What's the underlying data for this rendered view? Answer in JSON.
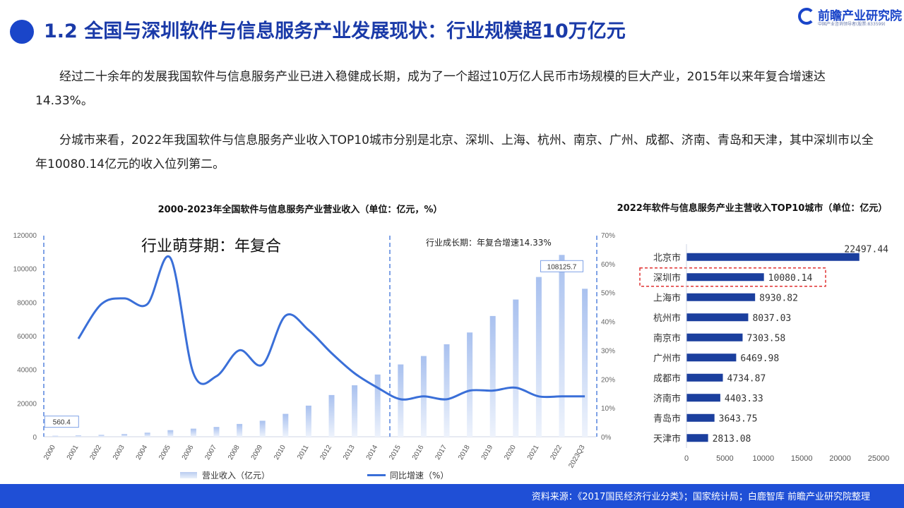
{
  "header": {
    "title": "1.2 全国与深圳软件与信息服务产业发展现状：行业规模超10万亿元",
    "logo_name": "前瞻产业研究院",
    "logo_sub": "中国产业咨询领导者(股票:833599)"
  },
  "paragraphs": [
    "经过二十余年的发展我国软件与信息服务产业已进入稳健成长期，成为了一个超过10万亿人民币市场规模的巨大产业，2015年以来年复合增速达14.33%。",
    "分城市来看，2022年我国软件与信息服务产业收入TOP10城市分别是北京、深圳、上海、杭州、南京、广州、成都、济南、青岛和天津，其中深圳市以全年10080.14亿元的收入位列第二。"
  ],
  "footer": {
    "source": "资料来源：《2017国民经济行业分类》；国家统计局；白鹿智库   前瞻产业研究院整理"
  },
  "colors": {
    "brand_blue": "#1a45c9",
    "footer_blue": "#1f4fd6",
    "line_blue": "#3a6fd8",
    "bar_navy": "#1b3f9e",
    "highlight_red": "#e03030"
  },
  "chart_data": [
    {
      "type": "bar",
      "title": "2000-2023年全国软件与信息服务产业营业收入（单位：亿元，%）",
      "categories": [
        "2000",
        "2001",
        "2002",
        "2003",
        "2004",
        "2005",
        "2006",
        "2007",
        "2008",
        "2009",
        "2010",
        "2011",
        "2012",
        "2013",
        "2014",
        "2015",
        "2016",
        "2017",
        "2018",
        "2019",
        "2020",
        "2021",
        "2022",
        "2023Q3"
      ],
      "series": [
        {
          "name": "营业收入（亿元）",
          "type": "bar",
          "axis": "left",
          "values": [
            560.4,
            800,
            1100,
            1600,
            2400,
            3900,
            4800,
            5800,
            7600,
            9500,
            13600,
            18500,
            24800,
            30600,
            37000,
            43000,
            48000,
            55000,
            62000,
            71800,
            81600,
            95000,
            108125.7,
            88000
          ]
        },
        {
          "name": "同比增速（%）",
          "type": "line",
          "axis": "right",
          "values": [
            null,
            34,
            46,
            48,
            46,
            62,
            22,
            21,
            30,
            25,
            42,
            37,
            29,
            22,
            17,
            13,
            14,
            13,
            16,
            16,
            17,
            14,
            14,
            14
          ]
        }
      ],
      "y_left": {
        "min": 0,
        "max": 120000,
        "ticks": [
          "0",
          "20000",
          "40000",
          "60000",
          "80000",
          "100000",
          "120000"
        ]
      },
      "y_right": {
        "min": 0,
        "max": 70,
        "ticks": [
          "0%",
          "10%",
          "20%",
          "30%",
          "40%",
          "50%",
          "60%",
          "70%"
        ]
      },
      "data_labels": {
        "first": "560.4",
        "peak": "108125.7"
      },
      "annotations": [
        "行业萌芽期：年复合",
        "行业成长期：年复合增速14.33%"
      ],
      "legend_position": "bottom"
    },
    {
      "type": "bar",
      "orientation": "horizontal",
      "title": "2022年软件与信息服务产业主营收入TOP10城市（单位：亿元）",
      "categories": [
        "北京市",
        "深圳市",
        "上海市",
        "杭州市",
        "南京市",
        "广州市",
        "成都市",
        "济南市",
        "青岛市",
        "天津市"
      ],
      "values": [
        22497.44,
        10080.14,
        8930.82,
        8037.03,
        7303.58,
        6469.98,
        4734.87,
        4403.33,
        3643.75,
        2813.08
      ],
      "labels": [
        "22497.44",
        "10080.14",
        "8930.82",
        "8037.03",
        "7303.58",
        "6469.98",
        "4734.87",
        "4403.33",
        "3643.75",
        "2813.08"
      ],
      "highlight": "深圳市",
      "x_axis": {
        "min": 0,
        "max": 25000,
        "ticks": [
          "0",
          "5000",
          "10000",
          "15000",
          "20000",
          "25000"
        ]
      }
    }
  ]
}
